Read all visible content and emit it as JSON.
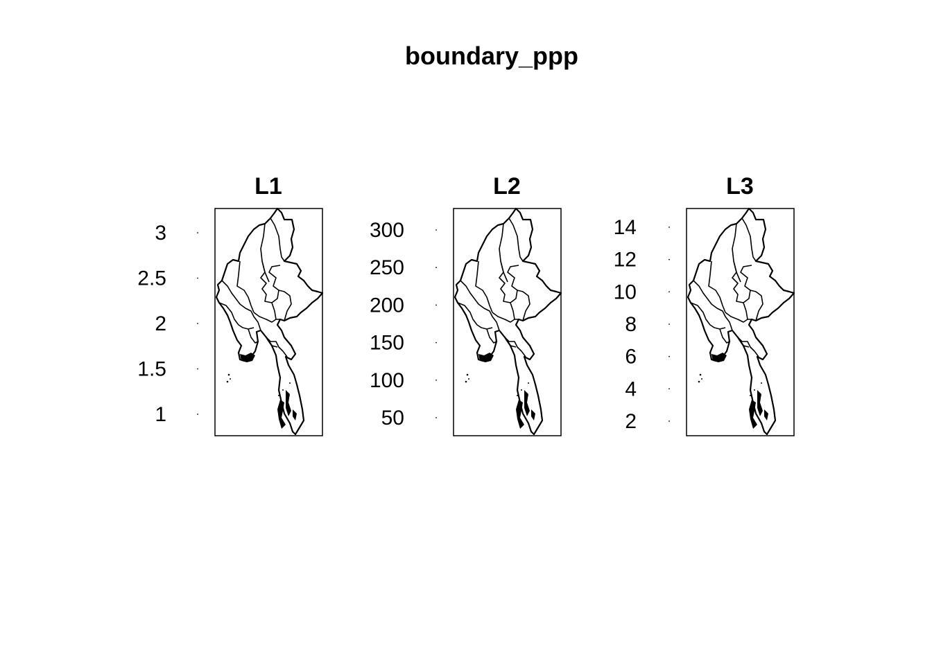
{
  "title": "boundary_ppp",
  "colors": {
    "background": "#ffffff",
    "ink": "#000000"
  },
  "panels": [
    {
      "label": "L1",
      "ticks": [
        {
          "label": "3",
          "value": 3
        },
        {
          "label": "2.5",
          "value": 2.5
        },
        {
          "label": "2",
          "value": 2
        },
        {
          "label": "1.5",
          "value": 1.5
        },
        {
          "label": "1",
          "value": 1
        }
      ]
    },
    {
      "label": "L2",
      "ticks": [
        {
          "label": "300",
          "value": 300
        },
        {
          "label": "250",
          "value": 250
        },
        {
          "label": "200",
          "value": 200
        },
        {
          "label": "150",
          "value": 150
        },
        {
          "label": "100",
          "value": 100
        },
        {
          "label": "50",
          "value": 50
        }
      ]
    },
    {
      "label": "L3",
      "ticks": [
        {
          "label": "14",
          "value": 14
        },
        {
          "label": "12",
          "value": 12
        },
        {
          "label": "10",
          "value": 10
        },
        {
          "label": "8",
          "value": 8
        },
        {
          "label": "6",
          "value": 6
        },
        {
          "label": "4",
          "value": 4
        },
        {
          "label": "2",
          "value": 2
        }
      ]
    }
  ]
}
